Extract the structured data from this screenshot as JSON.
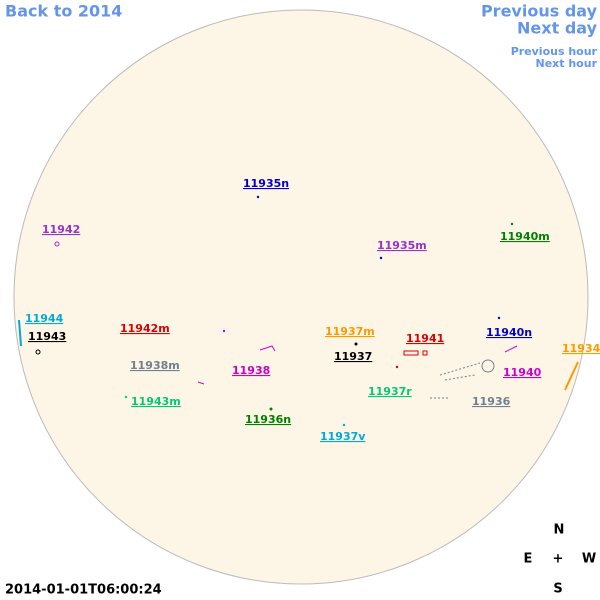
{
  "nav": {
    "back": "Back to 2014",
    "prev_day": "Previous day",
    "next_day": "Next day",
    "prev_hour": "Previous hour",
    "next_hour": "Next hour"
  },
  "regions": [
    {
      "label": "11935n",
      "color": "#0000cc"
    },
    {
      "label": "11942",
      "color": "#9933cc"
    },
    {
      "label": "11935m",
      "color": "#9933cc"
    },
    {
      "label": "11940m",
      "color": "#008000"
    },
    {
      "label": "11944",
      "color": "#00aadd"
    },
    {
      "label": "11943",
      "color": "#000000"
    },
    {
      "label": "11942m",
      "color": "#dd0000"
    },
    {
      "label": "11937m",
      "color": "#ff9900"
    },
    {
      "label": "11941",
      "color": "#dd0000"
    },
    {
      "label": "11940n",
      "color": "#0000cc"
    },
    {
      "label": "11934",
      "color": "#ff9900"
    },
    {
      "label": "11937",
      "color": "#000000"
    },
    {
      "label": "11938m",
      "color": "#708090"
    },
    {
      "label": "11938",
      "color": "#cc00cc"
    },
    {
      "label": "11940",
      "color": "#cc00cc"
    },
    {
      "label": "11937r",
      "color": "#00cc77"
    },
    {
      "label": "11936",
      "color": "#708090"
    },
    {
      "label": "11943m",
      "color": "#00cc77"
    },
    {
      "label": "11936n",
      "color": "#008000"
    },
    {
      "label": "11937v",
      "color": "#00aadd"
    }
  ],
  "compass": {
    "north": "N",
    "east": "E",
    "center": "+",
    "west": "W",
    "south": "S"
  },
  "timestamp": "2014-01-01T06:00:24"
}
